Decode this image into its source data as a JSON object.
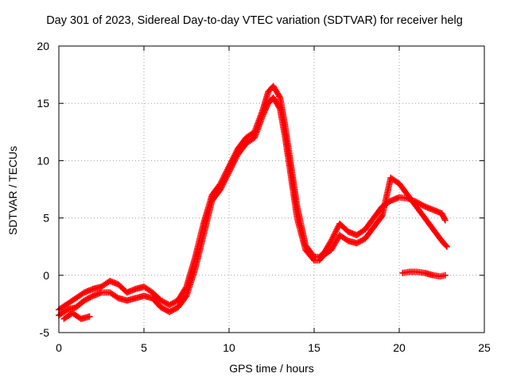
{
  "chart_data": {
    "type": "scatter",
    "title": "Day 301 of 2023, Sidereal Day-to-day VTEC variation (SDTVAR) for receiver helg",
    "xlabel": "GPS time / hours",
    "ylabel": "SDTVAR / TECUs",
    "xlim": [
      0,
      25
    ],
    "ylim": [
      -5,
      20
    ],
    "xticks": [
      "0",
      "5",
      "10",
      "15",
      "20",
      "25"
    ],
    "yticks": [
      "-5",
      "0",
      "5",
      "10",
      "15",
      "20"
    ],
    "grid": true,
    "marker": "+",
    "color": "#ff0000",
    "series": [
      {
        "name": "SDTVAR track A",
        "x": [
          0.0,
          0.5,
          1.0,
          1.5,
          2.0,
          2.5,
          3.0,
          3.5,
          4.0,
          4.5,
          5.0,
          5.5,
          6.0,
          6.5,
          7.0,
          7.5,
          8.0,
          8.5,
          9.0,
          9.5,
          10.0,
          10.5,
          11.0,
          11.5,
          12.0,
          12.3,
          12.6,
          13.0,
          13.3,
          13.6,
          14.0,
          14.5,
          15.0,
          15.3,
          15.6,
          16.0,
          16.5,
          17.0,
          17.5,
          18.0,
          18.5,
          19.0,
          19.5,
          20.0,
          20.5,
          21.0,
          21.5,
          22.0,
          22.5,
          22.7
        ],
        "y": [
          -3.0,
          -2.5,
          -2.0,
          -1.5,
          -1.2,
          -1.0,
          -0.5,
          -0.8,
          -1.5,
          -1.2,
          -1.0,
          -1.5,
          -2.2,
          -2.6,
          -2.2,
          -1.0,
          1.5,
          4.5,
          7.0,
          8.0,
          9.5,
          11.0,
          12.0,
          12.5,
          14.5,
          16.0,
          16.5,
          15.5,
          13.0,
          10.0,
          6.0,
          2.6,
          1.6,
          1.6,
          2.0,
          3.0,
          4.5,
          3.8,
          3.5,
          4.0,
          5.0,
          6.0,
          6.5,
          6.8,
          6.7,
          6.4,
          6.0,
          5.7,
          5.4,
          4.8
        ]
      },
      {
        "name": "SDTVAR track B",
        "x": [
          0.0,
          0.5,
          1.0,
          1.5,
          2.0,
          2.5,
          3.0,
          3.5,
          4.0,
          4.5,
          5.0,
          5.5,
          6.0,
          6.5,
          7.0,
          7.5,
          8.0,
          8.5,
          9.0,
          9.5,
          10.0,
          10.5,
          11.0,
          11.5,
          12.0,
          12.3,
          12.6,
          13.0,
          13.3,
          13.6,
          14.0,
          14.5,
          15.0,
          15.3,
          15.6,
          16.0,
          16.5,
          17.0,
          17.5,
          18.0,
          18.5,
          19.0,
          19.5,
          20.0,
          20.5,
          21.0,
          21.5,
          22.0,
          22.5,
          22.8
        ],
        "y": [
          -3.5,
          -3.0,
          -2.8,
          -2.2,
          -1.8,
          -1.5,
          -1.5,
          -2.0,
          -2.2,
          -2.0,
          -1.8,
          -2.0,
          -2.8,
          -3.2,
          -2.8,
          -1.8,
          0.5,
          3.5,
          6.5,
          7.5,
          9.0,
          10.5,
          11.5,
          12.0,
          14.0,
          15.0,
          15.5,
          14.5,
          12.0,
          9.0,
          5.0,
          2.2,
          1.3,
          1.3,
          1.8,
          2.2,
          3.5,
          3.0,
          2.8,
          3.2,
          4.2,
          5.2,
          8.5,
          8.0,
          7.0,
          6.0,
          5.0,
          4.0,
          3.0,
          2.5
        ]
      },
      {
        "name": "SDTVAR late segment",
        "x": [
          20.2,
          20.6,
          21.0,
          21.5,
          22.0,
          22.4,
          22.7
        ],
        "y": [
          0.2,
          0.3,
          0.3,
          0.2,
          0.0,
          -0.1,
          0.0
        ]
      },
      {
        "name": "SDTVAR early segment",
        "x": [
          0.3,
          0.8,
          1.3,
          1.8
        ],
        "y": [
          -3.8,
          -3.3,
          -3.8,
          -3.6
        ]
      }
    ]
  }
}
